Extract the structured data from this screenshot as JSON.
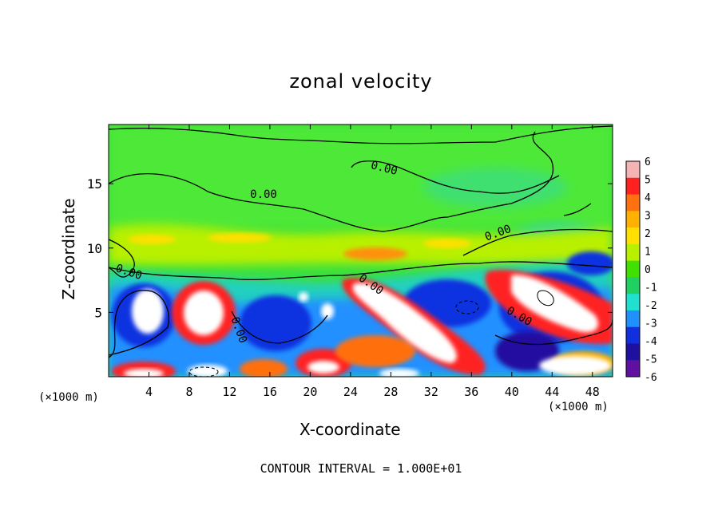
{
  "chart_data": {
    "type": "heatmap",
    "title": "zonal velocity",
    "xlabel": "X-coordinate",
    "ylabel": "Z-coordinate",
    "x_unit_left": "(×1000 m)",
    "x_unit_right": "(×1000 m)",
    "xlim": [
      0,
      50
    ],
    "ylim": [
      0,
      19.6
    ],
    "x_ticks": [
      "4",
      "8",
      "12",
      "16",
      "20",
      "24",
      "28",
      "32",
      "36",
      "40",
      "44",
      "48"
    ],
    "y_ticks": [
      "5",
      "10",
      "15"
    ],
    "colorbar": {
      "min": -6,
      "max": 6,
      "labels": [
        "6",
        "5",
        "4",
        "3",
        "2",
        "1",
        "0",
        "-1",
        "-2",
        "-3",
        "-4",
        "-5",
        "-6"
      ],
      "colors": [
        "#f6b3b3",
        "#ff2020",
        "#ff7010",
        "#ffb000",
        "#ffe000",
        "#b8f000",
        "#40e000",
        "#20d060",
        "#20e0d0",
        "#2090ff",
        "#1030e0",
        "#2010a0",
        "#6010a0"
      ]
    },
    "contour_labels": [
      "0.00",
      "0.00",
      "0.00",
      "0.00",
      "0.00",
      "0.00",
      "0.00"
    ],
    "footer": "CONTOUR INTERVAL = 1.000E+01"
  }
}
